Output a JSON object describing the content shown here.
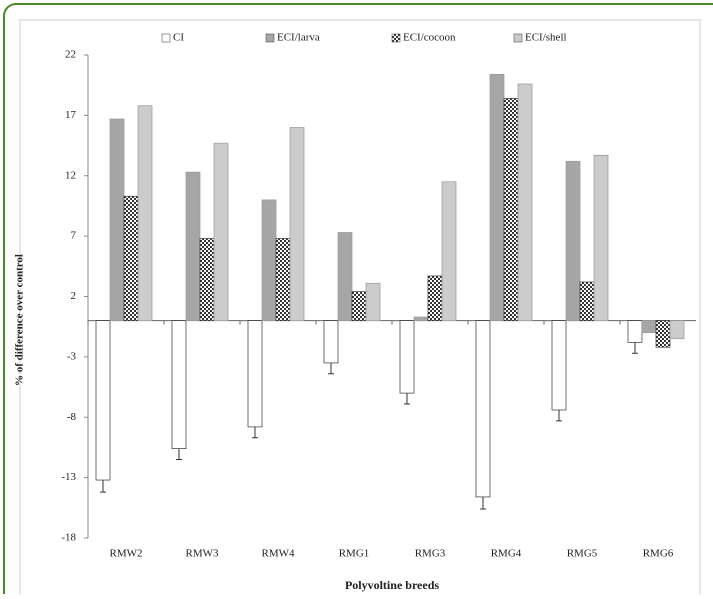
{
  "chart_data": {
    "type": "bar",
    "categories": [
      "RMW2",
      "RMW3",
      "RMW4",
      "RMG1",
      "RMG3",
      "RMG4",
      "RMG5",
      "RMG6"
    ],
    "series": [
      {
        "name": "CI",
        "color": "#ffffff",
        "values": [
          -13.2,
          -10.6,
          -8.8,
          -3.5,
          -6.0,
          -14.6,
          -7.4,
          -1.8
        ],
        "errors": [
          1.0,
          0.9,
          0.9,
          0.9,
          0.9,
          1.0,
          0.9,
          0.9
        ]
      },
      {
        "name": "ECI/larva",
        "color": "#a6a6a6",
        "values": [
          16.7,
          12.3,
          10.0,
          7.3,
          0.3,
          20.4,
          13.2,
          -1.0
        ]
      },
      {
        "name": "ECI/cocoon",
        "color": "#333333",
        "pattern": "checker",
        "values": [
          10.3,
          6.8,
          6.8,
          2.4,
          3.7,
          18.4,
          3.2,
          -2.2
        ]
      },
      {
        "name": "ECI/shell",
        "color": "#cccccc",
        "values": [
          17.8,
          14.7,
          16.0,
          3.1,
          11.5,
          19.6,
          13.7,
          -1.5
        ]
      }
    ],
    "y_label": "% of difference over control",
    "x_label": "Polyvoltine breeds",
    "ylim": [
      -18,
      22
    ],
    "yticks": [
      -18,
      -13,
      -8,
      -3,
      2,
      7,
      12,
      17,
      22
    ],
    "legend": "top"
  }
}
